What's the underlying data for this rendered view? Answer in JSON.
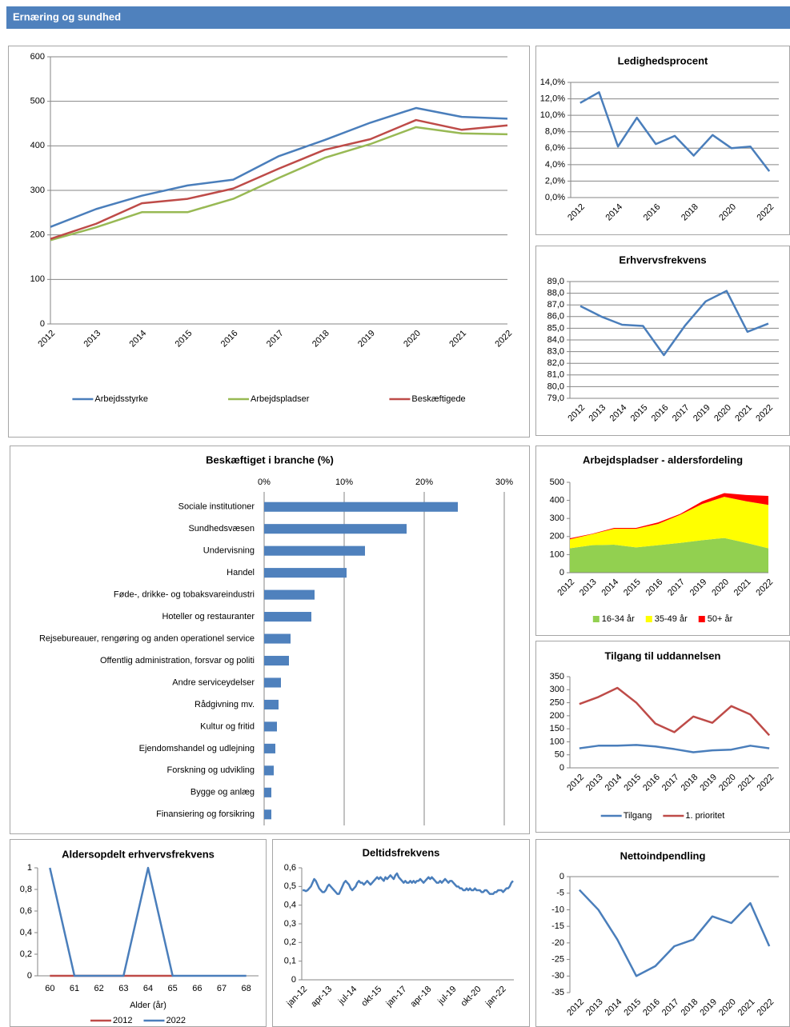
{
  "header": {
    "title": "Ernæring og sundhed"
  },
  "chart_data": [
    {
      "type": "line",
      "categories": [
        "2012",
        "2013",
        "2014",
        "2015",
        "2016",
        "2017",
        "2018",
        "2019",
        "2020",
        "2021",
        "2022"
      ],
      "series": [
        {
          "name": "Arbejdsstyrke",
          "color": "#4a7ebb",
          "values": [
            218,
            258,
            288,
            311,
            324,
            377,
            413,
            452,
            485,
            465,
            461
          ]
        },
        {
          "name": "Arbejdspladser",
          "color": "#98b954",
          "values": [
            188,
            217,
            251,
            251,
            281,
            328,
            373,
            404,
            442,
            428,
            426
          ]
        },
        {
          "name": "Beskæftigede",
          "color": "#be4b48",
          "values": [
            191,
            225,
            271,
            281,
            304,
            349,
            391,
            415,
            458,
            436,
            446
          ]
        }
      ],
      "ylim": [
        0,
        600
      ],
      "yticks": [
        0,
        100,
        200,
        300,
        400,
        500,
        600
      ],
      "grid": true,
      "legend": "bottom"
    },
    {
      "type": "line",
      "title": "Ledighedsprocent",
      "categories": [
        "2012",
        null,
        "2014",
        null,
        "2016",
        null,
        "2018",
        null,
        "2020",
        null,
        "2022"
      ],
      "series": [
        {
          "color": "#4a7ebb",
          "values": [
            11.5,
            12.8,
            6.2,
            9.7,
            6.5,
            7.5,
            5.1,
            7.6,
            6.0,
            6.2,
            3.2
          ]
        }
      ],
      "ylim": [
        0,
        14
      ],
      "yticks": [
        {
          "value": 0,
          "label": "0,0%"
        },
        {
          "value": 2,
          "label": "2,0%"
        },
        {
          "value": 4,
          "label": "4,0%"
        },
        {
          "value": 6,
          "label": "6,0%"
        },
        {
          "value": 8,
          "label": "8,0%"
        },
        {
          "value": 10,
          "label": "10,0%"
        },
        {
          "value": 12,
          "label": "12,0%"
        },
        {
          "value": 14,
          "label": "14,0%"
        }
      ],
      "grid": true
    },
    {
      "type": "line",
      "title": "Erhvervsfrekvens",
      "categories": [
        "2012",
        "2013",
        "2014",
        "2015",
        "2016",
        "2017",
        "2019",
        "2020",
        "2021",
        "2022"
      ],
      "series": [
        {
          "color": "#4a7ebb",
          "values": [
            86.9,
            86.0,
            85.3,
            85.2,
            82.7,
            85.2,
            87.3,
            88.2,
            84.7,
            85.4
          ]
        }
      ],
      "ylim": [
        79,
        89
      ],
      "yticks": [
        {
          "value": 79,
          "label": "79,0"
        },
        {
          "value": 80,
          "label": "80,0"
        },
        {
          "value": 81,
          "label": "81,0"
        },
        {
          "value": 82,
          "label": "82,0"
        },
        {
          "value": 83,
          "label": "83,0"
        },
        {
          "value": 84,
          "label": "84,0"
        },
        {
          "value": 85,
          "label": "85,0"
        },
        {
          "value": 86,
          "label": "86,0"
        },
        {
          "value": 87,
          "label": "87,0"
        },
        {
          "value": 88,
          "label": "88,0"
        },
        {
          "value": 89,
          "label": "89,0"
        }
      ],
      "grid": true
    },
    {
      "type": "bar",
      "orientation": "horizontal",
      "title": "Beskæftiget i branche (%)",
      "categories": [
        "Sociale institutioner",
        "Sundhedsvæsen",
        "Undervisning",
        "Handel",
        "Føde-, drikke- og tobaksvareindustri",
        "Hoteller og restauranter",
        "Rejsebureauer, rengøring og anden operationel service",
        "Offentlig administration, forsvar og politi",
        "Andre serviceydelser",
        "Rådgivning mv.",
        "Kultur og fritid",
        "Ejendomshandel og udlejning",
        "Forskning og udvikling",
        "Bygge og anlæg",
        "Finansiering og forsikring"
      ],
      "values": [
        24.2,
        17.8,
        12.6,
        10.3,
        6.3,
        5.9,
        3.3,
        3.1,
        2.1,
        1.8,
        1.6,
        1.4,
        1.2,
        0.9,
        0.9
      ],
      "color": "#4f81bd",
      "xlim": [
        0,
        30
      ],
      "xticks": [
        {
          "value": 0,
          "label": "0%"
        },
        {
          "value": 10,
          "label": "10%"
        },
        {
          "value": 20,
          "label": "20%"
        },
        {
          "value": 30,
          "label": "30%"
        }
      ],
      "grid": true
    },
    {
      "type": "area",
      "stacked": true,
      "title": "Arbejdspladser - aldersfordeling",
      "categories": [
        "2012",
        "2013",
        "2014",
        "2015",
        "2016",
        "2017",
        "2019",
        "2020",
        "2021",
        "2022"
      ],
      "series": [
        {
          "name": "16-34 år",
          "color": "#92d050",
          "values": [
            135,
            152,
            155,
            140,
            152,
            165,
            180,
            192,
            165,
            135
          ]
        },
        {
          "name": "35-49 år",
          "color": "#ffff00",
          "values": [
            50,
            61,
            88,
            103,
            118,
            155,
            200,
            228,
            230,
            240
          ]
        },
        {
          "name": "50+ år",
          "color": "#ff0000",
          "values": [
            5,
            2,
            5,
            5,
            8,
            5,
            15,
            20,
            35,
            50
          ]
        }
      ],
      "ylim": [
        0,
        500
      ],
      "yticks": [
        0,
        100,
        200,
        300,
        400,
        500
      ],
      "grid": false,
      "legend": "bottom"
    },
    {
      "type": "line",
      "title": "Tilgang til uddannelsen",
      "categories": [
        "2012",
        "2013",
        "2014",
        "2015",
        "2016",
        "2017",
        "2018",
        "2019",
        "2020",
        "2021",
        "2022"
      ],
      "series": [
        {
          "name": "Tilgang",
          "color": "#4a7ebb",
          "values": [
            75,
            85,
            85,
            88,
            82,
            72,
            60,
            67,
            70,
            85,
            75
          ]
        },
        {
          "name": "1. prioritet",
          "color": "#be4b48",
          "values": [
            245,
            272,
            307,
            250,
            170,
            137,
            197,
            173,
            237,
            205,
            125
          ]
        }
      ],
      "ylim": [
        0,
        350
      ],
      "yticks": [
        0,
        50,
        100,
        150,
        200,
        250,
        300,
        350
      ],
      "grid": false,
      "legend": "bottom"
    },
    {
      "type": "line",
      "title": "Aldersopdelt erhvervsfrekvens",
      "x_label": "Alder (år)",
      "categories": [
        "60",
        "61",
        "62",
        "63",
        "64",
        "65",
        "66",
        "67",
        "68"
      ],
      "series": [
        {
          "name": "2012",
          "color": "#be4b48",
          "values": [
            0,
            0,
            0,
            0,
            0,
            0,
            null,
            null,
            null
          ]
        },
        {
          "name": "2022",
          "color": "#4a7ebb",
          "values": [
            1,
            0,
            0,
            0,
            1,
            0,
            0,
            0,
            0
          ]
        }
      ],
      "ylim": [
        0,
        1
      ],
      "yticks": [
        0,
        {
          "value": 0.2,
          "label": "0,2"
        },
        {
          "value": 0.4,
          "label": "0,4"
        },
        {
          "value": 0.6,
          "label": "0,6"
        },
        {
          "value": 0.8,
          "label": "0,8"
        },
        1
      ],
      "grid": false,
      "legend": "bottom"
    },
    {
      "type": "line",
      "title": "Deltidsfrekvens",
      "categories": [
        "jan-12",
        null,
        null,
        null,
        null,
        null,
        null,
        null,
        null,
        null,
        null,
        null,
        null,
        null,
        null,
        "apr-13",
        null,
        null,
        null,
        null,
        null,
        null,
        null,
        null,
        null,
        null,
        null,
        null,
        null,
        null,
        "jul-14",
        null,
        null,
        null,
        null,
        null,
        null,
        null,
        null,
        null,
        null,
        null,
        null,
        null,
        null,
        "okt-15",
        null,
        null,
        null,
        null,
        null,
        null,
        null,
        null,
        null,
        null,
        null,
        null,
        null,
        null,
        "jan-17",
        null,
        null,
        null,
        null,
        null,
        null,
        null,
        null,
        null,
        null,
        null,
        null,
        null,
        null,
        "apr-18",
        null,
        null,
        null,
        null,
        null,
        null,
        null,
        null,
        null,
        null,
        null,
        null,
        null,
        null,
        "jul-19",
        null,
        null,
        null,
        null,
        null,
        null,
        null,
        null,
        null,
        null,
        null,
        null,
        null,
        null,
        "okt-20",
        null,
        null,
        null,
        null,
        null,
        null,
        null,
        null,
        null,
        null,
        null,
        null,
        null,
        null,
        "jan-22",
        null,
        null,
        null,
        null,
        null,
        null,
        null
      ],
      "series": [
        {
          "color": "#4a7ebb",
          "values": [
            0.48,
            0.48,
            0.475,
            0.48,
            0.49,
            0.5,
            0.52,
            0.54,
            0.53,
            0.51,
            0.49,
            0.48,
            0.47,
            0.47,
            0.48,
            0.5,
            0.51,
            0.5,
            0.49,
            0.48,
            0.47,
            0.46,
            0.46,
            0.48,
            0.5,
            0.52,
            0.53,
            0.52,
            0.51,
            0.49,
            0.48,
            0.49,
            0.5,
            0.52,
            0.53,
            0.52,
            0.52,
            0.51,
            0.52,
            0.53,
            0.52,
            0.51,
            0.52,
            0.53,
            0.54,
            0.55,
            0.54,
            0.55,
            0.54,
            0.53,
            0.55,
            0.54,
            0.55,
            0.56,
            0.55,
            0.54,
            0.56,
            0.57,
            0.55,
            0.54,
            0.53,
            0.52,
            0.53,
            0.52,
            0.52,
            0.53,
            0.52,
            0.53,
            0.52,
            0.53,
            0.53,
            0.54,
            0.53,
            0.52,
            0.53,
            0.54,
            0.55,
            0.54,
            0.55,
            0.54,
            0.53,
            0.52,
            0.52,
            0.53,
            0.52,
            0.53,
            0.54,
            0.53,
            0.52,
            0.53,
            0.53,
            0.52,
            0.51,
            0.5,
            0.5,
            0.49,
            0.49,
            0.48,
            0.48,
            0.49,
            0.48,
            0.49,
            0.48,
            0.48,
            0.49,
            0.48,
            0.48,
            0.48,
            0.47,
            0.47,
            0.48,
            0.48,
            0.47,
            0.46,
            0.46,
            0.46,
            0.47,
            0.47,
            0.48,
            0.48,
            0.48,
            0.47,
            0.48,
            0.49,
            0.49,
            0.5,
            0.52,
            0.53
          ]
        }
      ],
      "ylim": [
        0,
        0.6
      ],
      "yticks": [
        0,
        {
          "value": 0.1,
          "label": "0,1"
        },
        {
          "value": 0.2,
          "label": "0,2"
        },
        {
          "value": 0.3,
          "label": "0,3"
        },
        {
          "value": 0.4,
          "label": "0,4"
        },
        {
          "value": 0.5,
          "label": "0,5"
        },
        {
          "value": 0.6,
          "label": "0,6"
        }
      ],
      "grid": false
    },
    {
      "type": "line",
      "title": "Nettoindpendling",
      "categories": [
        "2012",
        "2013",
        "2014",
        "2015",
        "2016",
        "2017",
        "2018",
        "2019",
        "2020",
        "2021",
        "2022"
      ],
      "series": [
        {
          "color": "#4a7ebb",
          "values": [
            -4,
            -10,
            -19,
            -30,
            -27,
            -21,
            -19,
            -12,
            -14,
            -8,
            -21
          ]
        }
      ],
      "ylim": [
        -35,
        0
      ],
      "yticks": [
        0,
        -5,
        -10,
        -15,
        -20,
        -25,
        -30,
        -35
      ],
      "grid": false
    }
  ]
}
